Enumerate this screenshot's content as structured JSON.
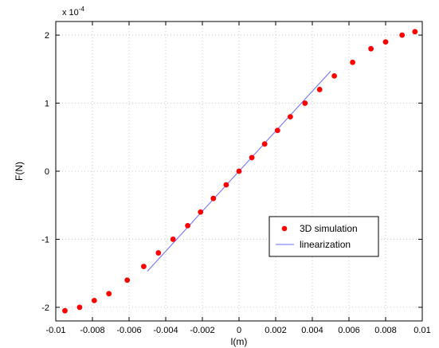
{
  "chart_data": {
    "type": "scatter",
    "xlabel": "l(m)",
    "ylabel": "F(N)",
    "xlim": [
      -0.01,
      0.01
    ],
    "ylim": [
      -2.2,
      2.2
    ],
    "y_exponent_label": "x 10",
    "y_exponent_power": "-4",
    "x_ticks": [
      -0.01,
      -0.008,
      -0.006,
      -0.004,
      -0.002,
      0,
      0.002,
      0.004,
      0.006,
      0.008,
      0.01
    ],
    "x_tick_labels": [
      "-0.01",
      "-0.008",
      "-0.006",
      "-0.004",
      "-0.002",
      "0",
      "0.002",
      "0.004",
      "0.006",
      "0.008",
      "0.01"
    ],
    "y_ticks": [
      -2,
      -1,
      0,
      1,
      2
    ],
    "y_tick_labels": [
      "-2",
      "-1",
      "0",
      "1",
      "2"
    ],
    "grid": true,
    "legend_position": "right-middle",
    "series": [
      {
        "name": "3D simulation",
        "kind": "scatter",
        "color": "#ff0000",
        "x": [
          -0.0095,
          -0.0087,
          -0.0079,
          -0.0071,
          -0.0061,
          -0.0052,
          -0.0044,
          -0.0036,
          -0.0028,
          -0.0021,
          -0.0014,
          -0.0007,
          0,
          0.0007,
          0.0014,
          0.0021,
          0.0028,
          0.0036,
          0.0044,
          0.0052,
          0.0062,
          0.0072,
          0.008,
          0.0089,
          0.0096
        ],
        "y": [
          -2.05,
          -2.0,
          -1.9,
          -1.8,
          -1.6,
          -1.4,
          -1.2,
          -1.0,
          -0.8,
          -0.6,
          -0.4,
          -0.2,
          0,
          0.2,
          0.4,
          0.6,
          0.8,
          1.0,
          1.2,
          1.4,
          1.6,
          1.8,
          1.9,
          2.0,
          2.05
        ]
      },
      {
        "name": "linearization",
        "kind": "line",
        "color": "#6b6bff",
        "x": [
          -0.005,
          0.005
        ],
        "y": [
          -1.47,
          1.47
        ]
      }
    ]
  }
}
